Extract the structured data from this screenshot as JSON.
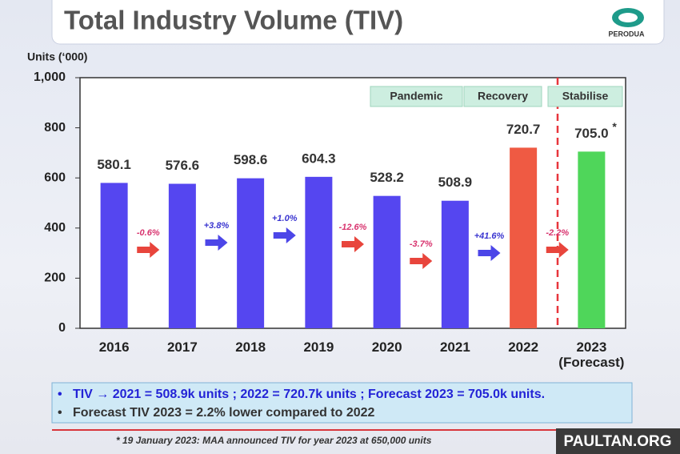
{
  "title": "Total Industry Volume (TIV)",
  "logo": "PERODUA",
  "chart_data": {
    "type": "bar",
    "y_axis_label": "Units (‘000)",
    "categories": [
      "2016",
      "2017",
      "2018",
      "2019",
      "2020",
      "2021",
      "2022",
      "2023\n(Forecast)"
    ],
    "values": [
      580.1,
      576.6,
      598.6,
      604.3,
      528.2,
      508.9,
      720.7,
      705.0
    ],
    "value_labels": [
      "580.1",
      "576.6",
      "598.6",
      "604.3",
      "528.2",
      "508.9",
      "720.7",
      "705.0"
    ],
    "colors": [
      "#5546f0",
      "#5546f0",
      "#5546f0",
      "#5546f0",
      "#5546f0",
      "#5546f0",
      "#ef5a43",
      "#4fd65a"
    ],
    "forecast_mark": "*",
    "changes": [
      {
        "label": "-0.6%",
        "color": "#e8453c"
      },
      {
        "label": "+3.8%",
        "color": "#4c46e8"
      },
      {
        "label": "+1.0%",
        "color": "#4c46e8"
      },
      {
        "label": "-12.6%",
        "color": "#e8453c"
      },
      {
        "label": "-3.7%",
        "color": "#e8453c"
      },
      {
        "label": "+41.6%",
        "color": "#4c46e8"
      },
      {
        "label": "-2.2%",
        "color": "#e8453c"
      }
    ],
    "phases": [
      "Pandemic",
      "Recovery",
      "Stabilise"
    ],
    "ylim": [
      0,
      1000
    ],
    "yticks": [
      0,
      200,
      400,
      600,
      800,
      {
        "value": 1000,
        "label": "1,000"
      }
    ]
  },
  "bullets": [
    "TIV → 2021 = 508.9k units ; 2022 = 720.7k units ; Forecast 2023 = 705.0k units.",
    "Forecast TIV 2023 = 2.2% lower compared to 2022"
  ],
  "footnote": "* 19 January 2023: MAA announced TIV for year 2023 at 650,000 units",
  "watermark": "PAULTAN.ORG"
}
